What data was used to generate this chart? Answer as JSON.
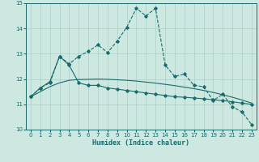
{
  "xlabel": "Humidex (Indice chaleur)",
  "xlim": [
    -0.5,
    23.5
  ],
  "ylim": [
    10,
    15
  ],
  "yticks": [
    10,
    11,
    12,
    13,
    14,
    15
  ],
  "xticks": [
    0,
    1,
    2,
    3,
    4,
    5,
    6,
    7,
    8,
    9,
    10,
    11,
    12,
    13,
    14,
    15,
    16,
    17,
    18,
    19,
    20,
    21,
    22,
    23
  ],
  "bg_color": "#cce8e0",
  "grid_color": "#aacfc8",
  "line_color": "#1a6b6b",
  "curve1_x": [
    0,
    1,
    2,
    3,
    4,
    5,
    6,
    7,
    8,
    9,
    10,
    11,
    12,
    13,
    14,
    15,
    16,
    17,
    18,
    19,
    20,
    21,
    22,
    23
  ],
  "curve1_y": [
    11.3,
    11.65,
    11.85,
    12.9,
    12.6,
    12.9,
    13.1,
    13.35,
    13.05,
    13.5,
    14.05,
    14.8,
    14.5,
    14.8,
    12.55,
    12.1,
    12.2,
    11.75,
    11.7,
    11.15,
    11.4,
    10.9,
    10.7,
    10.2
  ],
  "curve2_x": [
    0,
    1,
    2,
    3,
    4,
    5,
    6,
    7,
    8,
    9,
    10,
    11,
    12,
    13,
    14,
    15,
    16,
    17,
    18,
    19,
    20,
    21,
    22,
    23
  ],
  "curve2_y": [
    11.3,
    11.65,
    11.9,
    12.9,
    12.55,
    11.85,
    11.75,
    11.75,
    11.65,
    11.6,
    11.55,
    11.5,
    11.45,
    11.4,
    11.35,
    11.3,
    11.28,
    11.25,
    11.22,
    11.18,
    11.15,
    11.1,
    11.05,
    11.0
  ],
  "curve3_x": [
    0,
    1,
    2,
    3,
    4,
    5,
    6,
    7,
    8,
    9,
    10,
    11,
    12,
    13,
    14,
    15,
    16,
    17,
    18,
    19,
    20,
    21,
    22,
    23
  ],
  "curve3_y": [
    11.3,
    11.5,
    11.7,
    11.85,
    11.95,
    11.98,
    11.99,
    12.0,
    11.99,
    11.97,
    11.95,
    11.92,
    11.88,
    11.84,
    11.79,
    11.74,
    11.68,
    11.62,
    11.55,
    11.47,
    11.38,
    11.28,
    11.17,
    11.05
  ]
}
